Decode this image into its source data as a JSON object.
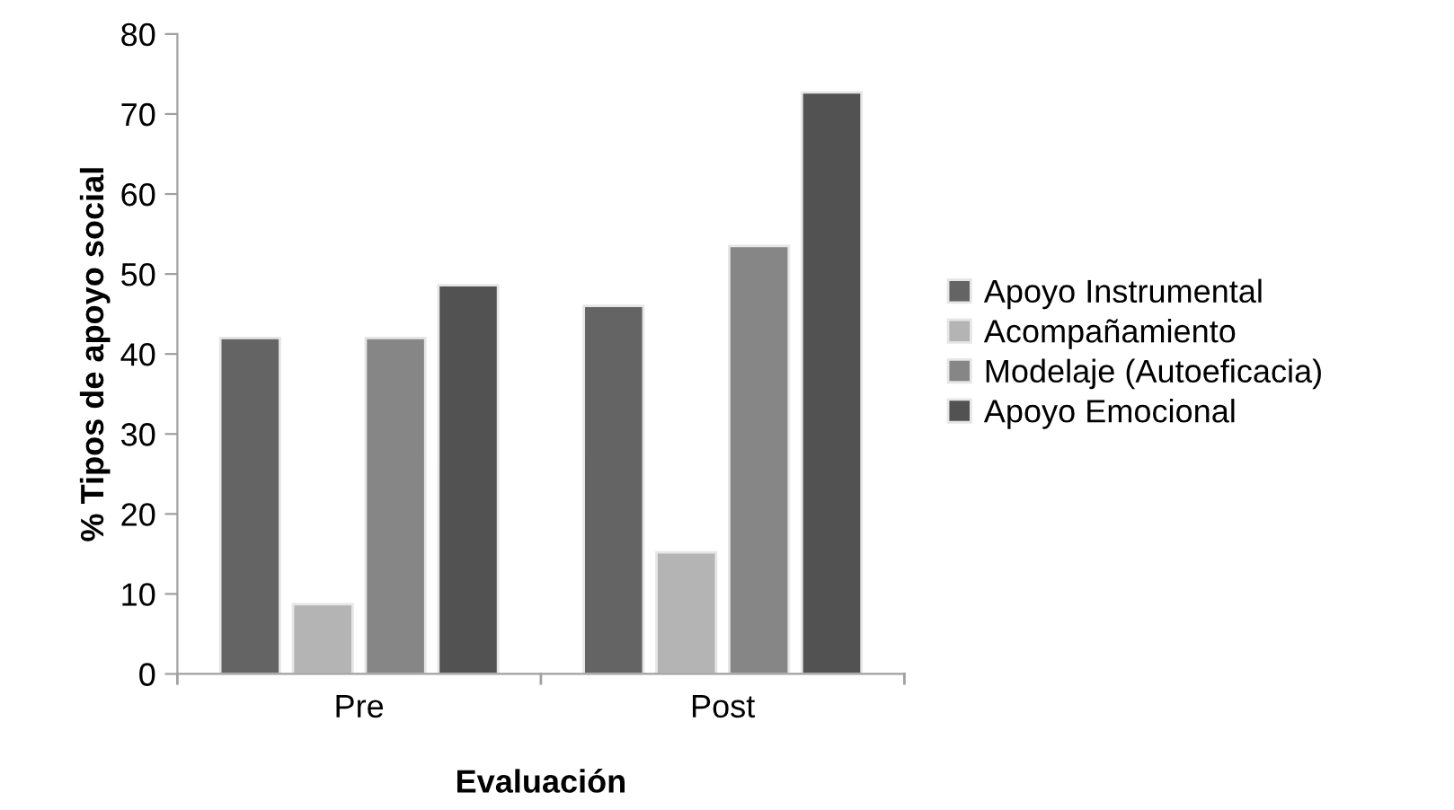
{
  "chart_data": {
    "type": "bar",
    "xlabel": "Evaluación",
    "ylabel": "% Tipos de apoyo social",
    "categories": [
      "Pre",
      "Post"
    ],
    "series": [
      {
        "name": "Apoyo Instrumental",
        "color": "#646464",
        "values": [
          42,
          46
        ]
      },
      {
        "name": "Acompañamiento",
        "color": "#b4b4b4",
        "values": [
          8.7,
          15.2
        ]
      },
      {
        "name": "Modelaje (Autoeficacia)",
        "color": "#868686",
        "values": [
          42,
          53.5
        ]
      },
      {
        "name": "Apoyo Emocional",
        "color": "#525252",
        "values": [
          48.6,
          72.7
        ]
      }
    ],
    "ylim": [
      0,
      80
    ],
    "yticks": [
      0,
      10,
      20,
      30,
      40,
      50,
      60,
      70,
      80
    ],
    "grid": false,
    "legend": "right"
  }
}
